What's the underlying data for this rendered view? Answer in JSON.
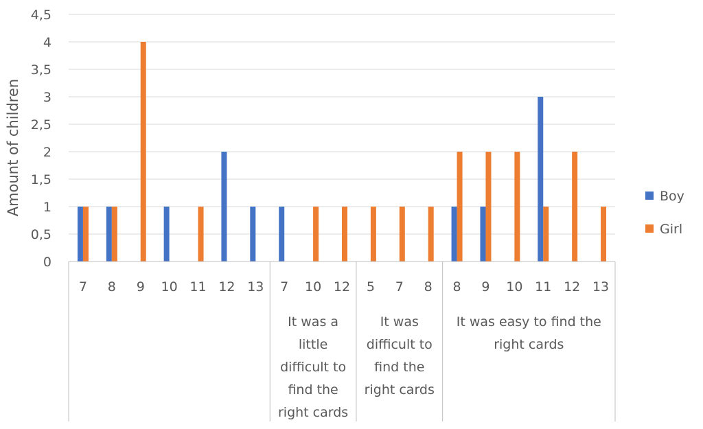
{
  "chart_data": {
    "type": "bar",
    "title": "",
    "xlabel": "",
    "ylabel": "Amount of children",
    "ylim": [
      0,
      4.5
    ],
    "ytick_labels": [
      "0",
      "0,5",
      "1",
      "1,5",
      "2",
      "2,5",
      "3",
      "3,5",
      "4",
      "4,5"
    ],
    "grid": true,
    "legend_position": "right",
    "groups": [
      {
        "label": "",
        "categories": [
          "7",
          "8",
          "9",
          "10",
          "11",
          "12",
          "13"
        ]
      },
      {
        "label": "It was a little difficult to find the right cards",
        "label_lines": [
          "It was a",
          "little",
          "difficult to",
          "find the",
          "right cards"
        ],
        "categories": [
          "7",
          "10",
          "12"
        ]
      },
      {
        "label": "It was difficult to find the right cards",
        "label_lines": [
          "It was",
          "difficult to",
          "find the",
          "right cards"
        ],
        "categories": [
          "5",
          "7",
          "8"
        ]
      },
      {
        "label": "It was easy to find the right cards",
        "label_lines": [
          "It was easy to find the",
          "right cards"
        ],
        "categories": [
          "8",
          "9",
          "10",
          "11",
          "12",
          "13"
        ]
      }
    ],
    "series": [
      {
        "name": "Boy",
        "color": "#4472C4",
        "values": [
          1,
          1,
          0,
          1,
          0,
          2,
          1,
          1,
          0,
          0,
          0,
          0,
          0,
          1,
          1,
          0,
          3,
          0,
          0
        ]
      },
      {
        "name": "Girl",
        "color": "#ED7D31",
        "values": [
          1,
          1,
          4,
          0,
          1,
          0,
          0,
          0,
          1,
          1,
          1,
          1,
          1,
          2,
          2,
          2,
          1,
          2,
          1
        ]
      }
    ],
    "gridline_color": "#d9d9d9",
    "axis_color": "#bfbfbf"
  }
}
